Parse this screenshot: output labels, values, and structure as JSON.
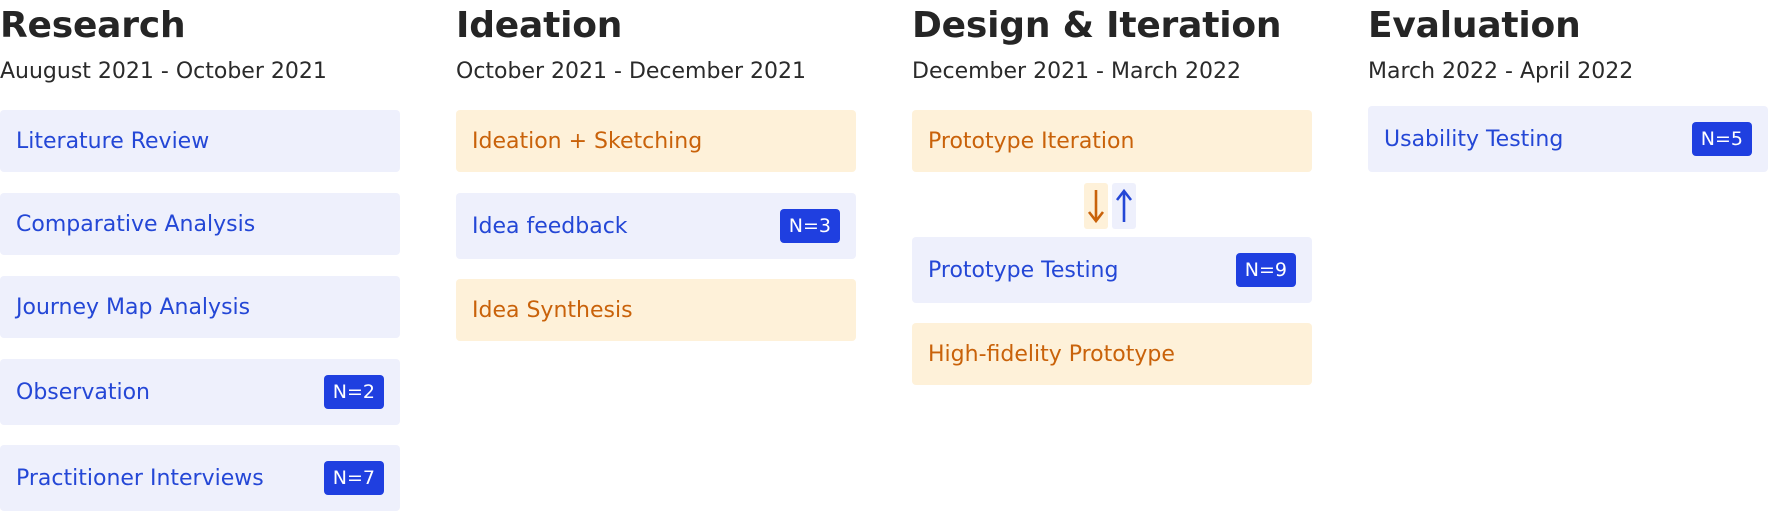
{
  "phases": [
    {
      "title": "Research",
      "dates": "Auugust 2021 - October 2021",
      "cards": [
        {
          "label": "Literature Review",
          "badge": ""
        },
        {
          "label": "Comparative Analysis",
          "badge": ""
        },
        {
          "label": "Journey Map Analysis",
          "badge": ""
        },
        {
          "label": "Observation",
          "badge": "N=2"
        },
        {
          "label": "Practitioner Interviews",
          "badge": "N=7"
        }
      ]
    },
    {
      "title": "Ideation",
      "dates": "October 2021 - December 2021",
      "cards": [
        {
          "label": "Ideation + Sketching",
          "badge": ""
        },
        {
          "label": "Idea feedback",
          "badge": "N=3"
        },
        {
          "label": "Idea Synthesis",
          "badge": ""
        }
      ]
    },
    {
      "title": "Design & Iteration",
      "dates": "December 2021 - March 2022",
      "cards": [
        {
          "label": "Prototype Iteration",
          "badge": ""
        },
        {
          "label": "Prototype Testing",
          "badge": "N=9"
        },
        {
          "label": "High-fidelity Prototype",
          "badge": ""
        }
      ]
    },
    {
      "title": "Evaluation",
      "dates": "March 2022 - April 2022",
      "cards": [
        {
          "label": "Usability Testing",
          "badge": "N=5"
        }
      ]
    }
  ],
  "colors": {
    "blue_bg": "#eef0fc",
    "blue_text": "#2447d6",
    "orange_bg": "#fef1d9",
    "orange_text": "#c9620a",
    "badge_bg": "#1f3fe0",
    "badge_text": "#ffffff"
  },
  "icons": {
    "down_arrow": "arrow-down-icon",
    "up_arrow": "arrow-up-icon"
  }
}
